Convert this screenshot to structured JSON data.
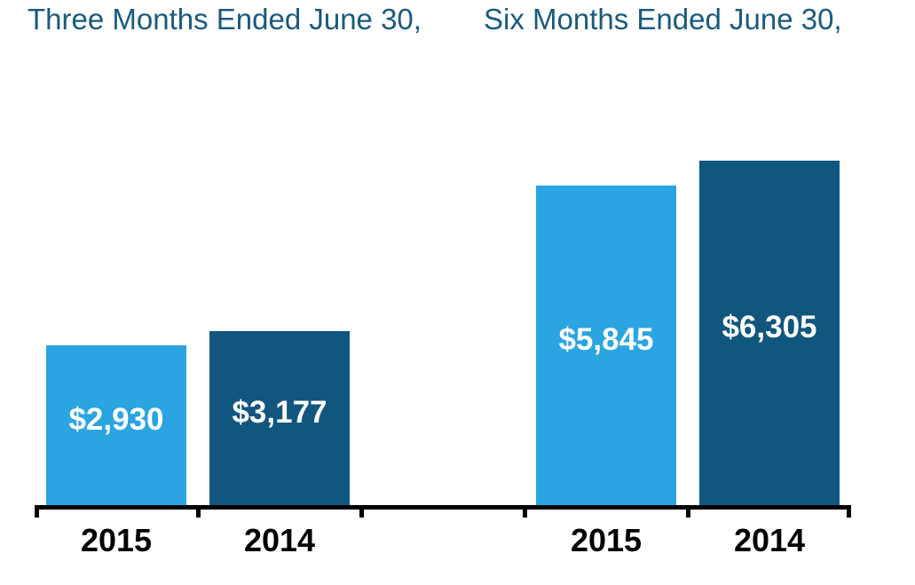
{
  "chart_data": {
    "type": "bar",
    "groups": [
      {
        "key": "three-months",
        "title": "Three Months Ended June 30,",
        "bars": [
          {
            "category": "2015",
            "year": "2015",
            "value": 2930,
            "label": "$2,930"
          },
          {
            "category": "2014",
            "year": "2014",
            "value": 3177,
            "label": "$3,177"
          }
        ]
      },
      {
        "key": "six-months",
        "title": "Six Months Ended June 30,",
        "bars": [
          {
            "category": "2015",
            "year": "2015",
            "value": 5845,
            "label": "$5,845"
          },
          {
            "category": "2014",
            "year": "2014",
            "value": 6305,
            "label": "$6,305"
          }
        ]
      }
    ],
    "series_colors": {
      "2015": "#2AA5E1",
      "2014": "#11567F"
    },
    "title_color": "#1A5A7E",
    "value_label_color": "#FFFFFF",
    "axis_color": "#000000",
    "tick_label_color": "#000000",
    "ylim": [
      0,
      6500
    ],
    "grid": false,
    "legend": "none"
  }
}
